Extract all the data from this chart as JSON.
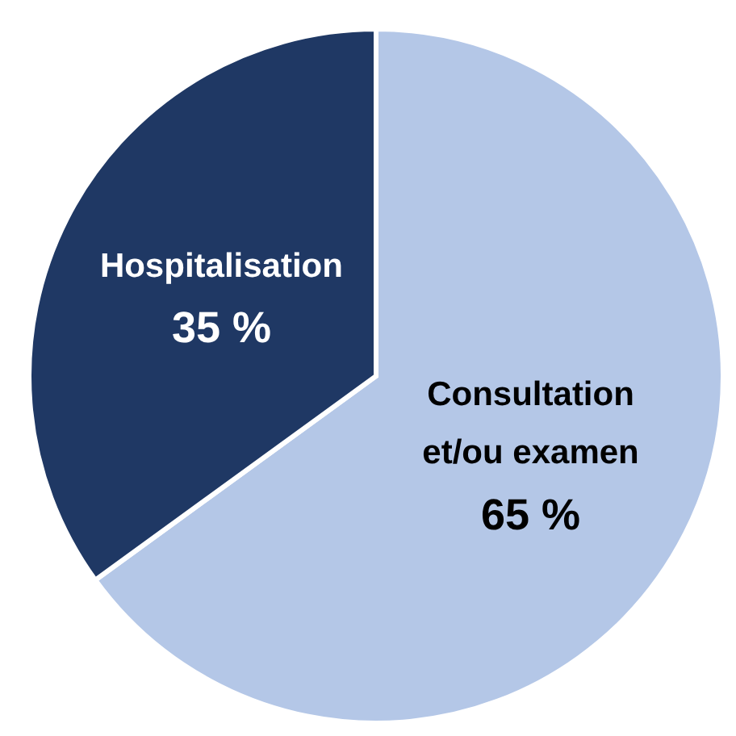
{
  "chart_data": {
    "type": "pie",
    "categories": [
      "Consultation et/ou examen",
      "Hospitalisation"
    ],
    "values": [
      65,
      35
    ],
    "value_labels": [
      "65 %",
      "35 %"
    ],
    "colors": [
      "#b4c7e7",
      "#1f3864"
    ]
  }
}
